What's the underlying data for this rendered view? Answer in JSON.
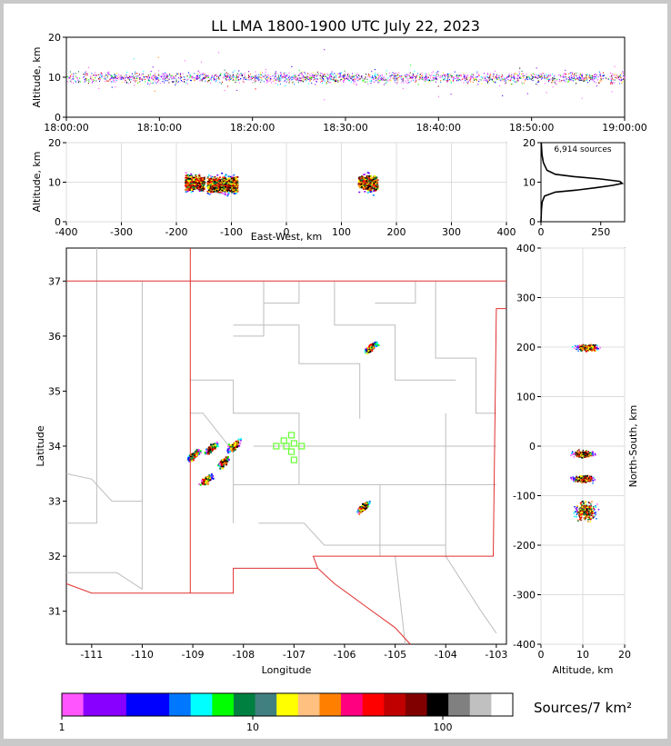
{
  "title": "LL LMA 1800-1900 UTC July 22, 2023",
  "colors": {
    "background": "#ffffff",
    "frame": "#c9c9c9",
    "state_border": "#e03030",
    "county_line": "#bdbdbd",
    "station": "#66ff33",
    "grid": "#dddddd"
  },
  "source_count_label": "6,914 sources",
  "colorbar": {
    "label": "Sources/7 km²",
    "tick_labels": [
      "1",
      "10",
      "100"
    ],
    "colors": [
      "#ff55ff",
      "#8800ff",
      "#8800ff",
      "#0000ff",
      "#0000ff",
      "#0077ff",
      "#00ffff",
      "#00ff00",
      "#008040",
      "#408080",
      "#ffff00",
      "#ffc080",
      "#ff8000",
      "#ff0080",
      "#ff0000",
      "#c00000",
      "#800000",
      "#000000",
      "#808080",
      "#c0c0c0",
      "#ffffff"
    ]
  },
  "chart_data": [
    {
      "panel": "time-height",
      "type": "scatter",
      "xlabel": "",
      "ylabel": "Altitude, km",
      "x_ticks": [
        "18:00:00",
        "18:10:00",
        "18:20:00",
        "18:30:00",
        "18:40:00",
        "18:50:00",
        "19:00:00"
      ],
      "xlim_minutes": [
        0,
        60
      ],
      "ylim": [
        0,
        20
      ],
      "y_ticks": [
        0,
        10,
        20
      ],
      "typical_altitude_km": 10
    },
    {
      "panel": "east-west-height",
      "type": "scatter",
      "xlabel": "East-West, km",
      "ylabel": "Altitude, km",
      "xlim": [
        -400,
        400
      ],
      "x_ticks": [
        -400,
        -300,
        -200,
        -100,
        0,
        100,
        200,
        300,
        400
      ],
      "ylim": [
        0,
        20
      ],
      "y_ticks": [
        0,
        10,
        20
      ],
      "clusters": [
        {
          "x_range": [
            -185,
            -150
          ],
          "altitude": 10
        },
        {
          "x_range": [
            -145,
            -115
          ],
          "altitude": 9.5
        },
        {
          "x_range": [
            -115,
            -90
          ],
          "altitude": 9.5
        },
        {
          "x_range": [
            130,
            165
          ],
          "altitude": 10
        }
      ]
    },
    {
      "panel": "altitude-histogram",
      "type": "line",
      "xlim": [
        0,
        350
      ],
      "x_ticks": [
        0,
        250
      ],
      "ylim": [
        0,
        20
      ],
      "y_ticks": [
        0,
        10,
        20
      ],
      "points": [
        [
          0,
          0
        ],
        [
          2,
          3
        ],
        [
          5,
          5
        ],
        [
          15,
          6.5
        ],
        [
          60,
          7.5
        ],
        [
          150,
          8
        ],
        [
          230,
          8.6
        ],
        [
          300,
          9.2
        ],
        [
          340,
          9.7
        ],
        [
          330,
          10.2
        ],
        [
          250,
          10.8
        ],
        [
          140,
          11.4
        ],
        [
          60,
          12
        ],
        [
          25,
          13
        ],
        [
          10,
          15
        ],
        [
          4,
          17
        ],
        [
          1,
          20
        ]
      ]
    },
    {
      "panel": "plan-view",
      "type": "heatmap",
      "xlabel": "Longitude",
      "ylabel": "Latitude",
      "xlim": [
        -111.5,
        -102.8
      ],
      "x_ticks": [
        -111,
        -110,
        -109,
        -108,
        -107,
        -106,
        -105,
        -104,
        -103
      ],
      "ylim": [
        30.4,
        37.6
      ],
      "y_ticks": [
        31,
        32,
        33,
        34,
        35,
        36,
        37
      ],
      "clusters": [
        {
          "lon": -109.0,
          "lat": 33.85
        },
        {
          "lon": -108.65,
          "lat": 33.97
        },
        {
          "lon": -108.2,
          "lat": 34.02
        },
        {
          "lon": -108.4,
          "lat": 33.72
        },
        {
          "lon": -108.75,
          "lat": 33.4
        },
        {
          "lon": -105.65,
          "lat": 32.9
        },
        {
          "lon": -105.5,
          "lat": 35.8
        }
      ],
      "stations": [
        {
          "lon": -107.2,
          "lat": 34.1
        },
        {
          "lon": -107.05,
          "lat": 34.2
        },
        {
          "lon": -107.35,
          "lat": 34.0
        },
        {
          "lon": -107.15,
          "lat": 34.0
        },
        {
          "lon": -107.0,
          "lat": 34.05
        },
        {
          "lon": -106.85,
          "lat": 34.0
        },
        {
          "lon": -107.05,
          "lat": 33.9
        },
        {
          "lon": -107.0,
          "lat": 33.75
        }
      ]
    },
    {
      "panel": "north-south-height",
      "type": "scatter",
      "xlabel": "Altitude, km",
      "ylabel": "North-South, km",
      "xlim": [
        0,
        20
      ],
      "x_ticks": [
        0,
        10,
        20
      ],
      "ylim": [
        -400,
        400
      ],
      "y_ticks": [
        -400,
        -300,
        -200,
        -100,
        0,
        100,
        200,
        300,
        400
      ],
      "clusters": [
        {
          "ns": 200,
          "altitude": 11
        },
        {
          "ns": -15,
          "altitude": 10
        },
        {
          "ns": -65,
          "altitude": 10
        },
        {
          "ns": -130,
          "altitude": 10.5
        }
      ]
    }
  ]
}
